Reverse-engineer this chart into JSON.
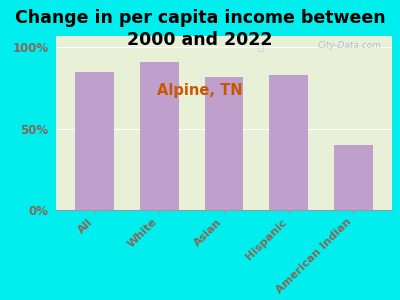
{
  "title": "Change in per capita income between\n2000 and 2022",
  "subtitle": "Alpine, TN",
  "categories": [
    "All",
    "White",
    "Asian",
    "Hispanic",
    "American Indian"
  ],
  "values": [
    85,
    91,
    82,
    83,
    40
  ],
  "bar_color": "#bf9fcc",
  "background_outer": "#00eeee",
  "background_plot": "#e8f0d8",
  "title_fontsize": 12.5,
  "subtitle_fontsize": 10.5,
  "subtitle_color": "#cc5500",
  "tick_label_color": "#886655",
  "ylabel_ticks": [
    "0%",
    "50%",
    "100%"
  ],
  "ylabel_values": [
    0,
    50,
    100
  ],
  "ylim": [
    0,
    107
  ],
  "watermark": "City-Data.com",
  "watermark_color": "#aaaacc"
}
